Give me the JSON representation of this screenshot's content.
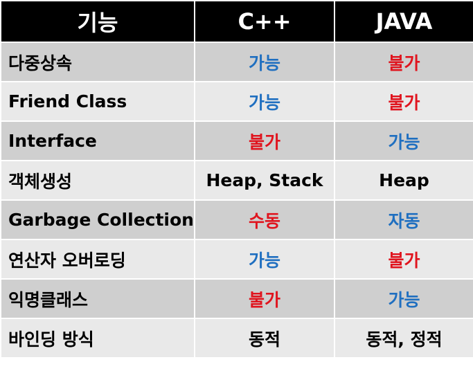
{
  "header": {
    "feature": "기능",
    "cpp": "C++",
    "java": "JAVA"
  },
  "rows": [
    {
      "feature": "다중상속",
      "cpp": "가능",
      "cpp_color": "blue",
      "java": "불가",
      "java_color": "red"
    },
    {
      "feature": "Friend Class",
      "cpp": "가능",
      "cpp_color": "blue",
      "java": "불가",
      "java_color": "red"
    },
    {
      "feature": "Interface",
      "cpp": "불가",
      "cpp_color": "red",
      "java": "가능",
      "java_color": "blue"
    },
    {
      "feature": "객체생성",
      "cpp": "Heap, Stack",
      "cpp_color": "black",
      "java": "Heap",
      "java_color": "black"
    },
    {
      "feature": "Garbage Collection",
      "cpp": "수동",
      "cpp_color": "red",
      "java": "자동",
      "java_color": "blue"
    },
    {
      "feature": "연산자 오버로딩",
      "cpp": "가능",
      "cpp_color": "blue",
      "java": "불가",
      "java_color": "red"
    },
    {
      "feature": "익명클래스",
      "cpp": "불가",
      "cpp_color": "red",
      "java": "가능",
      "java_color": "blue"
    },
    {
      "feature": "바인딩 방식",
      "cpp": "동적",
      "cpp_color": "black",
      "java": "동적, 정적",
      "java_color": "black"
    }
  ],
  "colors": {
    "blue": "#1f6fc0",
    "red": "#e0141e",
    "black": "#000000",
    "header_bg": "#000000",
    "row_dark": "#cfcfcf",
    "row_light": "#e9e9e9"
  }
}
